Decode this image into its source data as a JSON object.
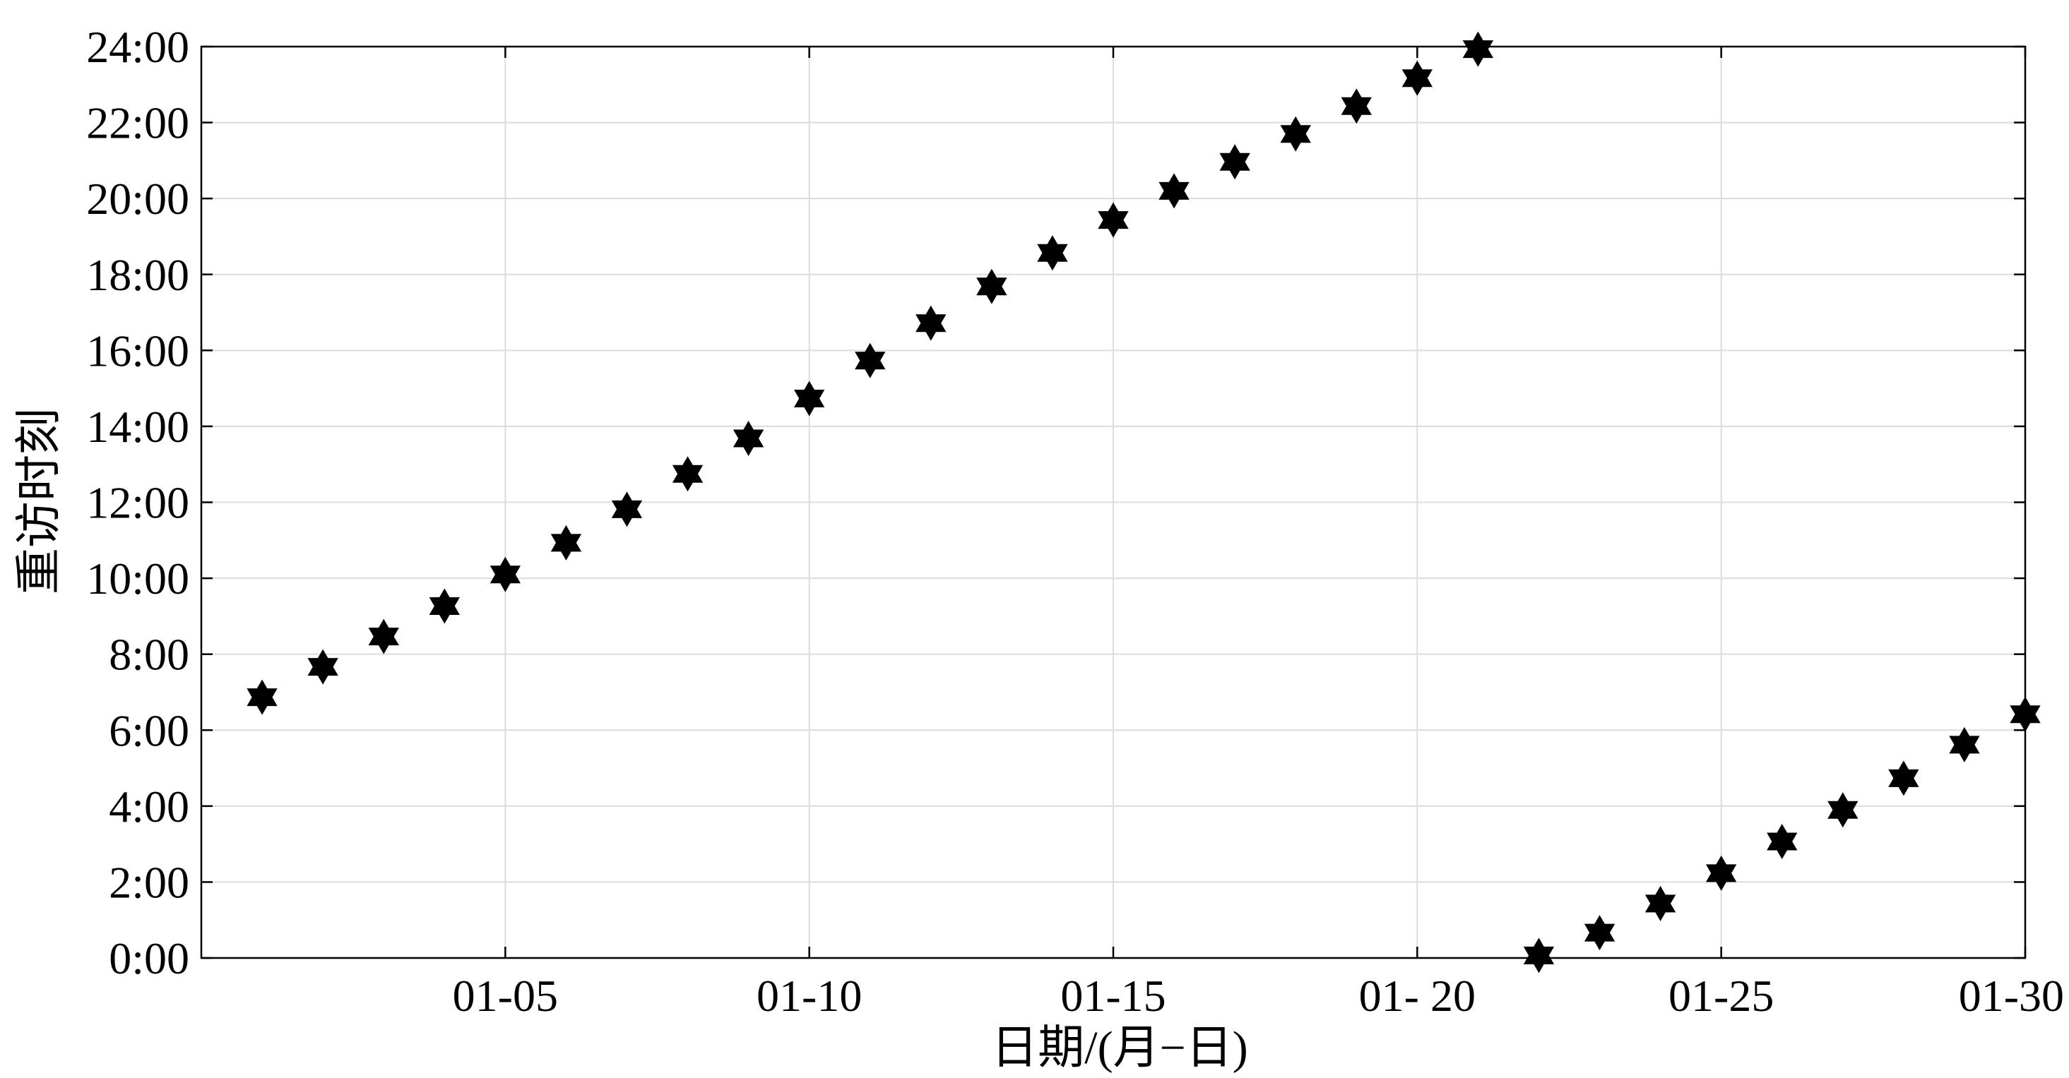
{
  "chart_data": {
    "type": "scatter",
    "title": "",
    "xlabel": "日期/(月−日)",
    "ylabel": "重访时刻",
    "xlim": [
      "12-31",
      "01-30"
    ],
    "ylim": [
      "0:00",
      "24:00"
    ],
    "x_tick_labels": [
      "01-05",
      "01-10",
      "01-15",
      "01- 20",
      "01-25",
      "01-30"
    ],
    "y_tick_labels": [
      "0:00",
      "2:00",
      "4:00",
      "6:00",
      "8:00",
      "10:00",
      "12:00",
      "14:00",
      "16:00",
      "18:00",
      "20:00",
      "22:00",
      "24:00"
    ],
    "grid": true,
    "legend": "none",
    "marker": "hexagram",
    "marker_color": "#000000",
    "points": [
      {
        "date": "01-01",
        "time": "6:52"
      },
      {
        "date": "01-02",
        "time": "7:40"
      },
      {
        "date": "01-03",
        "time": "8:28"
      },
      {
        "date": "01-04",
        "time": "9:16"
      },
      {
        "date": "01-05",
        "time": "10:06"
      },
      {
        "date": "01-06",
        "time": "10:56"
      },
      {
        "date": "01-07",
        "time": "11:49"
      },
      {
        "date": "01-08",
        "time": "12:45"
      },
      {
        "date": "01-09",
        "time": "13:41"
      },
      {
        "date": "01-10",
        "time": "14:44"
      },
      {
        "date": "01-11",
        "time": "15:44"
      },
      {
        "date": "01-12",
        "time": "16:43"
      },
      {
        "date": "01-13",
        "time": "17:41"
      },
      {
        "date": "01-14",
        "time": "18:34"
      },
      {
        "date": "01-15",
        "time": "19:26"
      },
      {
        "date": "01-16",
        "time": "20:12"
      },
      {
        "date": "01-17",
        "time": "20:58"
      },
      {
        "date": "01-18",
        "time": "21:42"
      },
      {
        "date": "01-19",
        "time": "22:26"
      },
      {
        "date": "01-20",
        "time": "23:10"
      },
      {
        "date": "01-21",
        "time": "23:56"
      },
      {
        "date": "01-22",
        "time": "0:04"
      },
      {
        "date": "01-23",
        "time": "0:40"
      },
      {
        "date": "01-24",
        "time": "1:26"
      },
      {
        "date": "01-25",
        "time": "2:14"
      },
      {
        "date": "01-26",
        "time": "3:04"
      },
      {
        "date": "01-27",
        "time": "3:54"
      },
      {
        "date": "01-28",
        "time": "4:44"
      },
      {
        "date": "01-29",
        "time": "5:37"
      },
      {
        "date": "01-30",
        "time": "6:25"
      }
    ]
  }
}
